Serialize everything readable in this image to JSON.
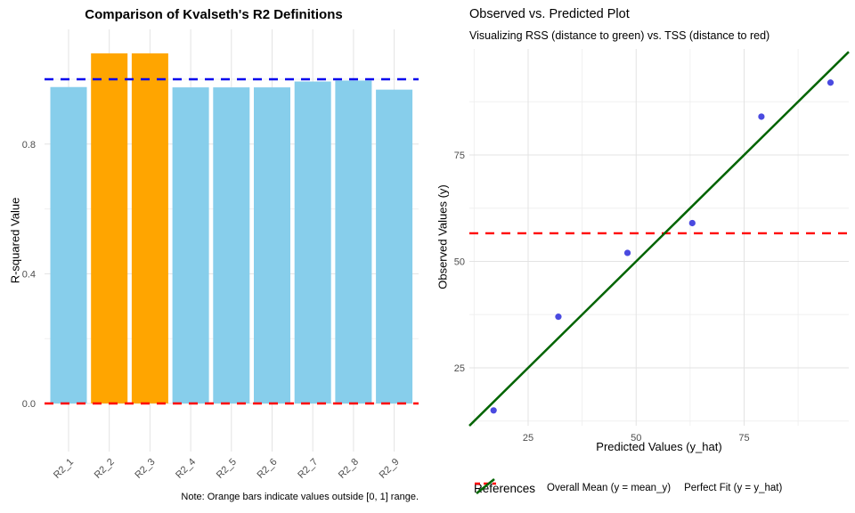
{
  "chart_data": [
    {
      "type": "bar",
      "title": "Comparison of Kvalseth's R2 Definitions",
      "ylabel": "R-squared Value",
      "caption": "Note: Orange bars indicate values outside [0, 1] range.",
      "categories": [
        "R2_1",
        "R2_2",
        "R2_3",
        "R2_4",
        "R2_5",
        "R2_6",
        "R2_7",
        "R2_8",
        "R2_9"
      ],
      "values": [
        0.976,
        1.08,
        1.08,
        0.975,
        0.975,
        0.975,
        0.993,
        0.996,
        0.968
      ],
      "bar_colors": [
        "#87CEEB",
        "#FFA500",
        "#FFA500",
        "#87CEEB",
        "#87CEEB",
        "#87CEEB",
        "#87CEEB",
        "#87CEEB",
        "#87CEEB"
      ],
      "normal_color": "#87CEEB",
      "highlight_color": "#FFA500",
      "yticks": [
        0.0,
        0.4,
        0.8
      ],
      "ytick_labels": [
        "0.0",
        "0.4",
        "0.8"
      ],
      "ylim": [
        -0.15,
        1.15
      ],
      "grid": true,
      "reference_lines": [
        {
          "y": 1.0,
          "color": "#0000EE",
          "style": "dashed"
        },
        {
          "y": 0.0,
          "color": "#FF0000",
          "style": "dashed"
        }
      ]
    },
    {
      "type": "scatter",
      "title": "Observed vs. Predicted Plot",
      "subtitle": "Visualizing RSS (distance to green) vs. TSS (distance to red)",
      "xlabel": "Predicted Values (y_hat)",
      "ylabel": "Observed Values (y)",
      "points": [
        {
          "x": 17,
          "y": 15
        },
        {
          "x": 32,
          "y": 37
        },
        {
          "x": 48,
          "y": 52
        },
        {
          "x": 63,
          "y": 59
        },
        {
          "x": 79,
          "y": 84
        },
        {
          "x": 95,
          "y": 92
        }
      ],
      "point_color": "#4A4AE0",
      "xticks": [
        25,
        50,
        75
      ],
      "yticks": [
        25,
        50,
        75
      ],
      "xtick_labels": [
        "25",
        "50",
        "75"
      ],
      "ytick_labels": [
        "25",
        "50",
        "75"
      ],
      "xlim": [
        11.4,
        99.2
      ],
      "ylim": [
        11.4,
        99.8
      ],
      "grid": true,
      "mean_line": {
        "y": 56.6,
        "color": "#FF0000",
        "style": "dashed"
      },
      "identity_line": {
        "color": "#006400",
        "style": "solid"
      },
      "legend": {
        "title": "References",
        "position": "bottom",
        "entries": [
          {
            "label": "Overall Mean (y = mean_y)",
            "color": "#FF0000",
            "dashed": true
          },
          {
            "label": "Perfect Fit (y = y_hat)",
            "color": "#006400",
            "dashed": false
          }
        ]
      }
    }
  ]
}
